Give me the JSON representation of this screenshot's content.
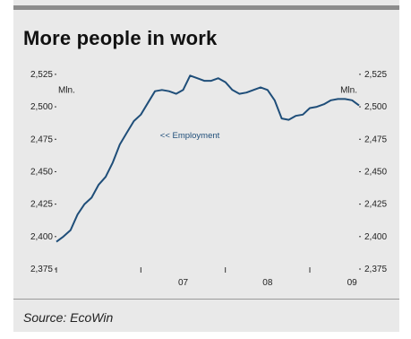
{
  "title": "More people in work",
  "source": "Source: EcoWin",
  "chart_data": {
    "type": "line",
    "left_unit": "Mln.",
    "right_unit": "Mln.",
    "yticks": [
      2375,
      2400,
      2425,
      2450,
      2475,
      2500,
      2525
    ],
    "ytick_labels": [
      "2,375",
      "2,400",
      "2,425",
      "2,450",
      "2,475",
      "2,500",
      "2,525"
    ],
    "ylim": [
      2375,
      2527
    ],
    "xlim": [
      2006.0,
      2009.583
    ],
    "xtick_years": [
      2006.0,
      2007.0,
      2008.0,
      2009.0
    ],
    "xtick_labels": [
      {
        "label": "07",
        "x": 2007.5
      },
      {
        "label": "08",
        "x": 2008.5
      },
      {
        "label": "09",
        "x": 2009.5
      }
    ],
    "line_color": "#1f4e79",
    "annotation": "<< Employment",
    "series": [
      {
        "name": "Employment",
        "x": [
          2006.0,
          2006.083,
          2006.167,
          2006.25,
          2006.333,
          2006.417,
          2006.5,
          2006.583,
          2006.667,
          2006.75,
          2006.833,
          2006.917,
          2007.0,
          2007.083,
          2007.167,
          2007.25,
          2007.333,
          2007.417,
          2007.5,
          2007.583,
          2007.667,
          2007.75,
          2007.833,
          2007.917,
          2008.0,
          2008.083,
          2008.167,
          2008.25,
          2008.333,
          2008.417,
          2008.5,
          2008.583,
          2008.667,
          2008.75,
          2008.833,
          2008.917,
          2009.0,
          2009.083,
          2009.167,
          2009.25,
          2009.333,
          2009.417,
          2009.5,
          2009.583
        ],
        "values": [
          2396,
          2400,
          2405,
          2417,
          2425,
          2430,
          2440,
          2446,
          2457,
          2471,
          2480,
          2489,
          2494,
          2503,
          2512,
          2513,
          2512,
          2510,
          2513,
          2524,
          2522,
          2520,
          2520,
          2522,
          2519,
          2513,
          2510,
          2511,
          2513,
          2515,
          2513,
          2505,
          2491,
          2490,
          2493,
          2494,
          2499,
          2500,
          2502,
          2505,
          2506,
          2506,
          2505,
          2501
        ]
      }
    ]
  }
}
